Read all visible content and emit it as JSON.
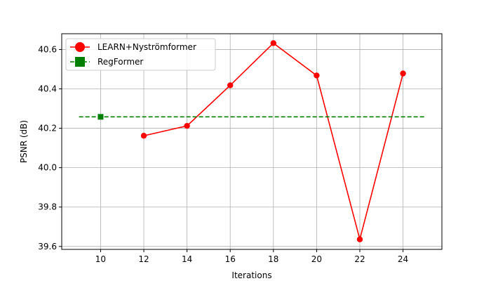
{
  "chart_data": {
    "type": "line",
    "xlabel": "Iterations",
    "ylabel": "PSNR (dB)",
    "xlim": [
      8.2,
      25.8
    ],
    "ylim": [
      39.585,
      40.68
    ],
    "xticks": [
      "10",
      "12",
      "14",
      "16",
      "18",
      "20",
      "22",
      "24"
    ],
    "yticks": [
      "39.6",
      "39.8",
      "40.0",
      "40.2",
      "40.4",
      "40.6"
    ],
    "grid": true,
    "legend_position": "upper-left",
    "series": [
      {
        "name": "LEARN+Nyströmformer",
        "color": "#ff0000",
        "linestyle": "solid",
        "marker": "circle",
        "x": [
          12,
          14,
          16,
          18,
          20,
          22,
          24
        ],
        "y": [
          40.162,
          40.212,
          40.418,
          40.632,
          40.468,
          39.636,
          40.478
        ]
      },
      {
        "name": "RegFormer",
        "color": "#008000",
        "linestyle": "dashed",
        "marker": "square",
        "line_x": [
          9,
          25
        ],
        "line_y": [
          40.258,
          40.258
        ],
        "x": [
          10
        ],
        "y": [
          40.258
        ]
      }
    ]
  }
}
